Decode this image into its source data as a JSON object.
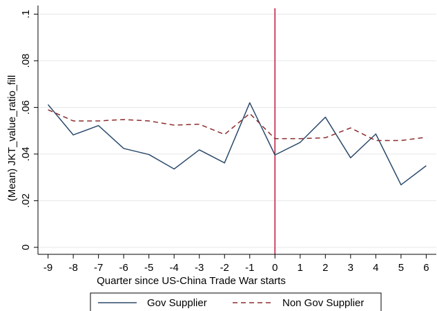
{
  "chart_data": {
    "type": "line",
    "xlabel": "Quarter since US-China Trade War starts",
    "ylabel": "(Mean) JKT_value_ratio_fill",
    "x": [
      -9,
      -8,
      -7,
      -6,
      -5,
      -4,
      -3,
      -2,
      -1,
      0,
      1,
      2,
      3,
      4,
      5,
      6
    ],
    "xlim": [
      -9.4,
      6.4
    ],
    "ylim": [
      -0.003,
      0.1025
    ],
    "y_ticks": [
      0,
      0.02,
      0.04,
      0.06,
      0.08,
      0.1
    ],
    "y_tick_labels": [
      "0",
      ".02",
      ".04",
      ".06",
      ".08",
      ".1"
    ],
    "x_tick_labels": [
      "-9",
      "-8",
      "-7",
      "-6",
      "-5",
      "-4",
      "-3",
      "-2",
      "-1",
      "0",
      "1",
      "2",
      "3",
      "4",
      "5",
      "6"
    ],
    "grid": true,
    "legend_position": "bottom",
    "reference_line_x": 0,
    "reference_line_color": "#c0143c",
    "series": [
      {
        "name": "Gov Supplier",
        "style": "solid",
        "color": "#2b4a6b",
        "values": [
          0.0612,
          0.0482,
          0.0522,
          0.0424,
          0.0398,
          0.0336,
          0.0418,
          0.0362,
          0.062,
          0.0396,
          0.045,
          0.0558,
          0.0384,
          0.0486,
          0.0268,
          0.035
        ]
      },
      {
        "name": "Non Gov Supplier",
        "style": "dashed",
        "color": "#8b2b2b",
        "values": [
          0.059,
          0.0542,
          0.0542,
          0.0548,
          0.0542,
          0.0524,
          0.0528,
          0.0484,
          0.0574,
          0.0466,
          0.0466,
          0.047,
          0.0512,
          0.0458,
          0.0458,
          0.0472
        ]
      }
    ]
  }
}
